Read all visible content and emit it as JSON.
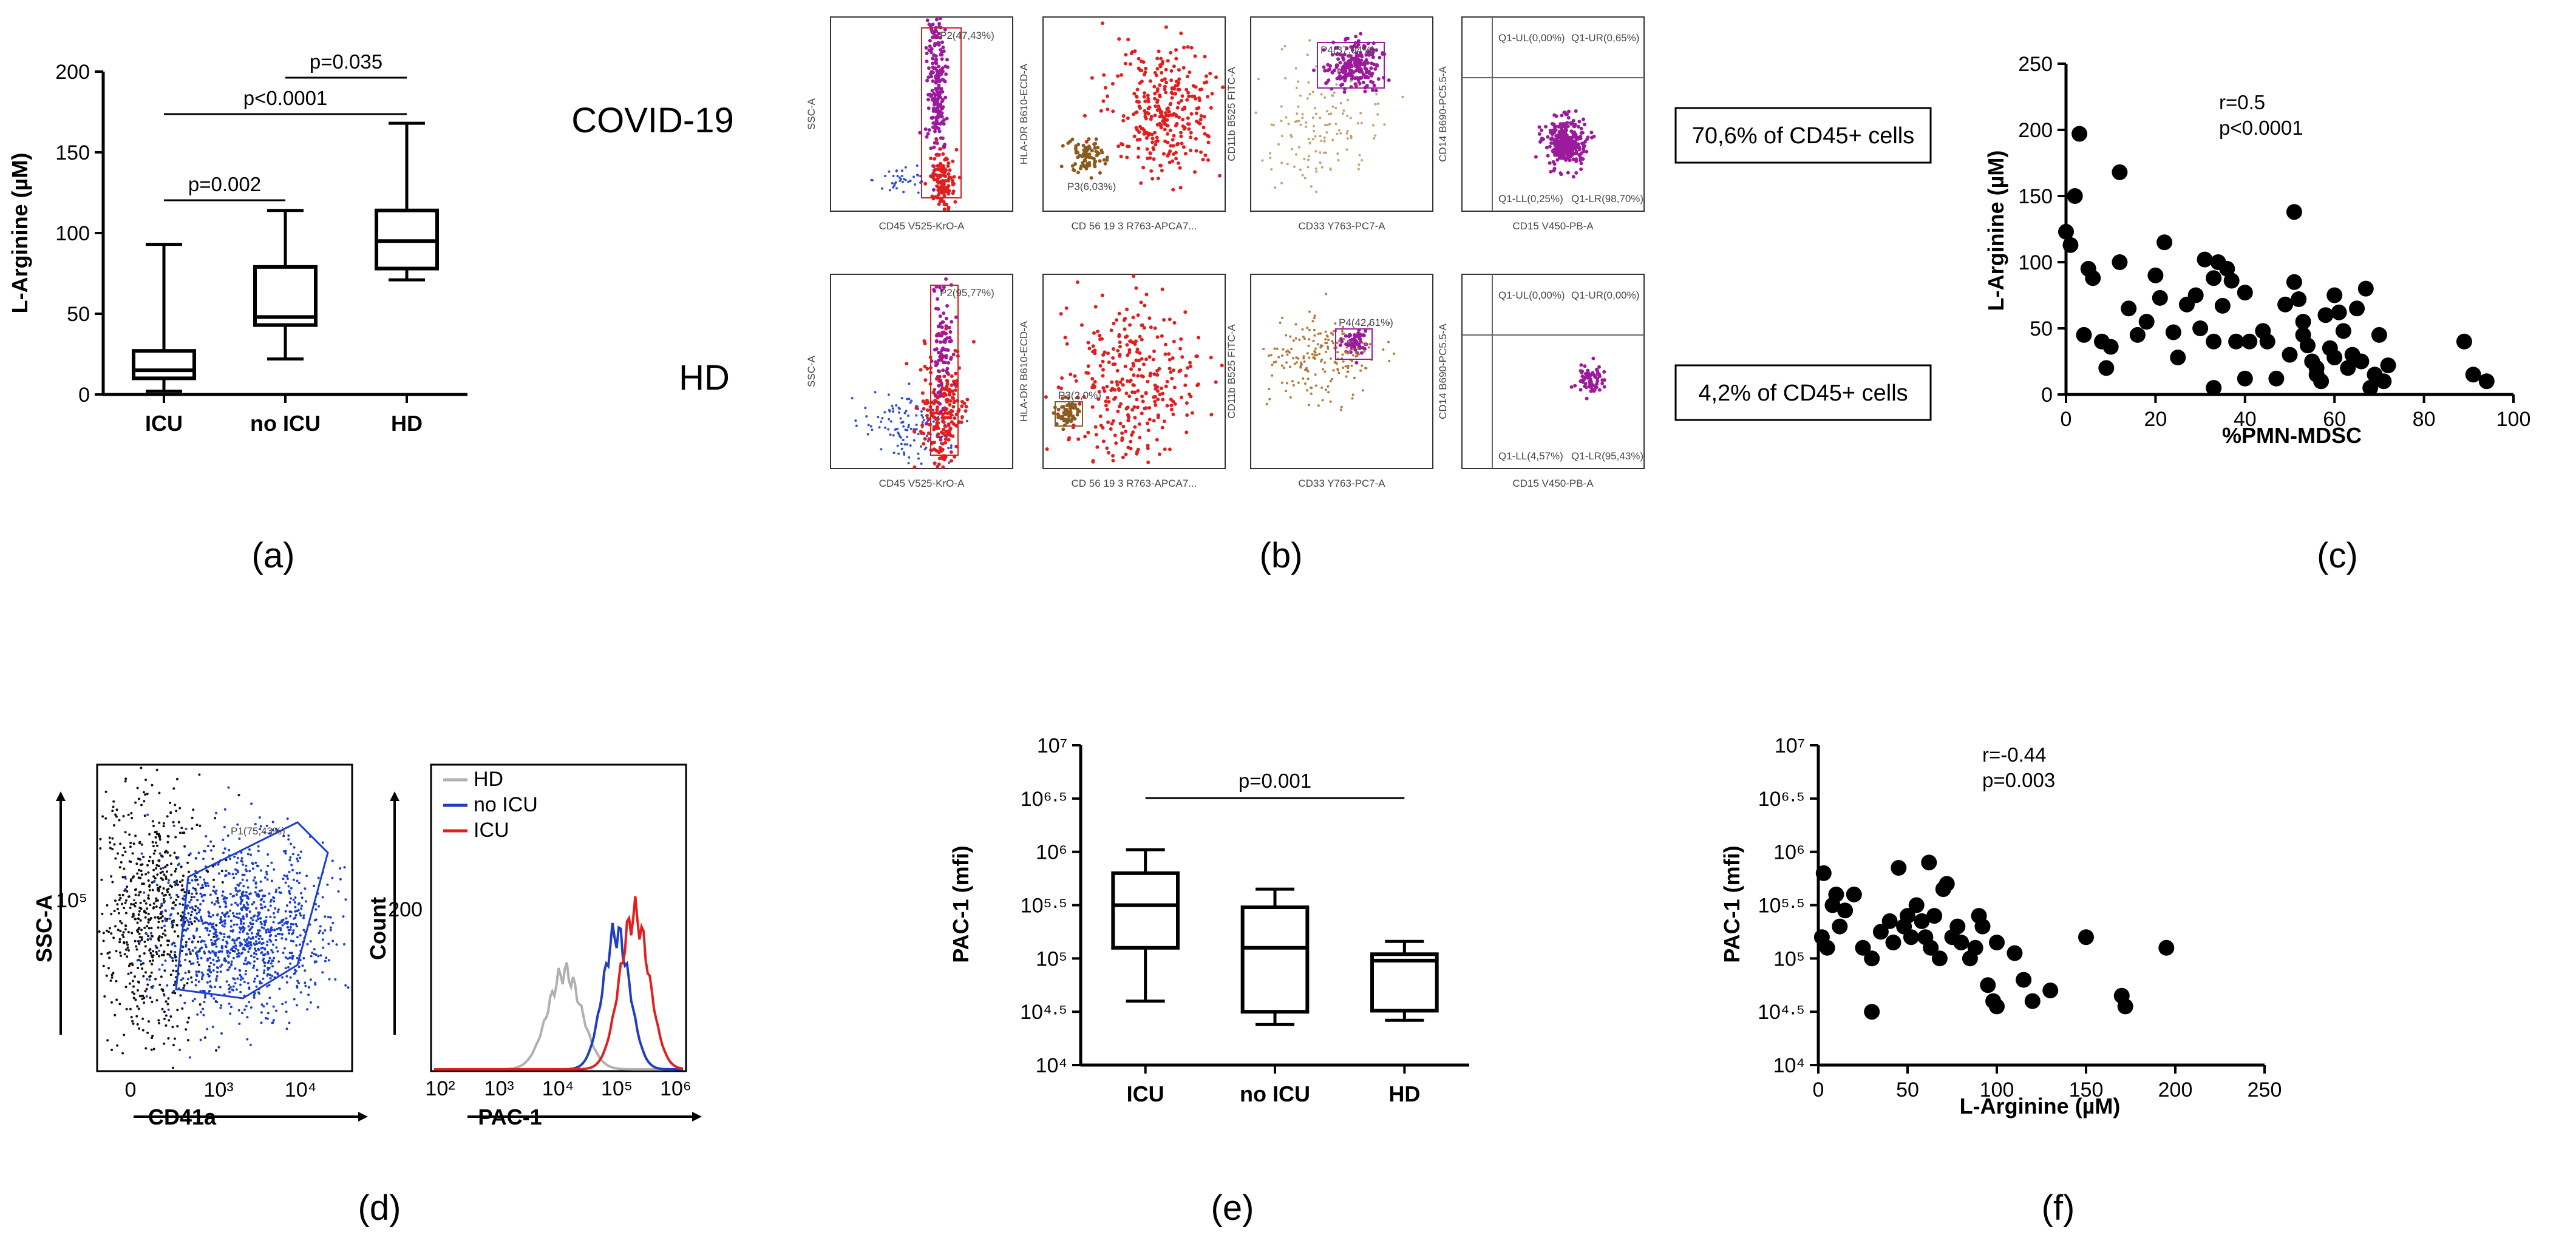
{
  "chart_data": [
    {
      "panel": "a",
      "type": "box",
      "caption": "(a)",
      "ylabel": "L-Arginine (µM)",
      "ylim": [
        0,
        200
      ],
      "yticks": [
        "0",
        "50",
        "100",
        "150",
        "200"
      ],
      "categories": [
        "ICU",
        "no ICU",
        "HD"
      ],
      "boxes": [
        {
          "min": 2,
          "q1": 10,
          "median": 15,
          "q3": 27,
          "max": 93
        },
        {
          "min": 22,
          "q1": 43,
          "median": 48,
          "q3": 79,
          "max": 114
        },
        {
          "min": 71,
          "q1": 78,
          "median": 95,
          "q3": 114,
          "max": 168
        }
      ],
      "comparisons": [
        {
          "label": "p=0.002",
          "from": 0,
          "to": 1
        },
        {
          "label": "p<0.0001",
          "from": 0,
          "to": 2
        },
        {
          "label": "p=0.035",
          "from": 1,
          "to": 2
        }
      ]
    },
    {
      "panel": "b",
      "type": "flow-cytometry",
      "caption": "(b)",
      "rows": [
        {
          "label": "COVID-19",
          "summary": "70,6% of CD45+ cells",
          "gates": [
            "P2(47,43%)",
            "P3(6,03%)",
            "P4(37,04%)"
          ],
          "quadrants": [
            "Q1-UL(0,00%)",
            "Q1-UR(0,65%)",
            "Q1-LL(0,25%)",
            "Q1-LR(98,70%)"
          ]
        },
        {
          "label": "HD",
          "summary": "4,2% of CD45+ cells",
          "gates": [
            "P2(95,77%)",
            "P3(2,0%)",
            "P4(42,61%)"
          ],
          "quadrants": [
            "Q1-UL(0,00%)",
            "Q1-UR(0,00%)",
            "Q1-LL(4,57%)",
            "Q1-LR(95,43%)"
          ]
        }
      ],
      "x_axis_labels": [
        "CD45 V525-KrO-A",
        "CD 56 19 3 R763-APCA7...",
        "CD33 Y763-PC7-A",
        "CD15 V450-PB-A"
      ],
      "y_axis_labels": [
        "SSC-A",
        "HLA-DR B610-ECD-A",
        "CD11b B525 FITC-A",
        "CD14 B690-PC5.5-A"
      ]
    },
    {
      "panel": "c",
      "type": "scatter",
      "caption": "(c)",
      "xlabel": "%PMN-MDSC",
      "ylabel": "L-Arginine (µM)",
      "xlim": [
        0,
        100
      ],
      "ylim": [
        0,
        250
      ],
      "xticks": [
        "0",
        "20",
        "40",
        "60",
        "80",
        "100"
      ],
      "yticks": [
        "0",
        "50",
        "100",
        "150",
        "200",
        "250"
      ],
      "annotation": [
        "r=0.5",
        "p<0.0001"
      ],
      "points": [
        [
          0,
          123
        ],
        [
          1,
          113
        ],
        [
          2,
          150
        ],
        [
          3,
          197
        ],
        [
          5,
          95
        ],
        [
          4,
          45
        ],
        [
          6,
          88
        ],
        [
          8,
          40
        ],
        [
          9,
          20
        ],
        [
          10,
          36
        ],
        [
          12,
          168
        ],
        [
          12,
          100
        ],
        [
          14,
          65
        ],
        [
          16,
          45
        ],
        [
          18,
          55
        ],
        [
          20,
          90
        ],
        [
          22,
          115
        ],
        [
          21,
          73
        ],
        [
          24,
          47
        ],
        [
          25,
          28
        ],
        [
          27,
          68
        ],
        [
          29,
          75
        ],
        [
          31,
          102
        ],
        [
          30,
          50
        ],
        [
          33,
          88
        ],
        [
          35,
          67
        ],
        [
          33,
          40
        ],
        [
          34,
          100
        ],
        [
          36,
          95
        ],
        [
          37,
          86
        ],
        [
          38,
          40
        ],
        [
          40,
          77
        ],
        [
          41,
          40
        ],
        [
          40,
          12
        ],
        [
          45,
          40
        ],
        [
          47,
          12
        ],
        [
          49,
          68
        ],
        [
          50,
          30
        ],
        [
          51,
          138
        ],
        [
          51,
          85
        ],
        [
          52,
          72
        ],
        [
          53,
          55
        ],
        [
          53,
          45
        ],
        [
          54,
          37
        ],
        [
          55,
          25
        ],
        [
          56,
          15
        ],
        [
          57,
          10
        ],
        [
          58,
          60
        ],
        [
          59,
          35
        ],
        [
          60,
          75
        ],
        [
          61,
          62
        ],
        [
          62,
          48
        ],
        [
          63,
          20
        ],
        [
          64,
          30
        ],
        [
          65,
          65
        ],
        [
          66,
          25
        ],
        [
          67,
          80
        ],
        [
          68,
          5
        ],
        [
          69,
          15
        ],
        [
          70,
          45
        ],
        [
          71,
          10
        ],
        [
          72,
          22
        ],
        [
          89,
          40
        ],
        [
          91,
          15
        ],
        [
          94,
          10
        ],
        [
          33,
          5
        ],
        [
          56,
          20
        ],
        [
          44,
          48
        ],
        [
          60,
          28
        ]
      ]
    },
    {
      "panel": "d",
      "type": "flow-cytometry",
      "caption": "(d)",
      "dot_plot": {
        "xlabel": "CD41a",
        "ylabel": "SSC-A",
        "gate": "P1(75,43%)"
      },
      "histogram": {
        "xlabel": "PAC-1",
        "ylabel": "Count",
        "legend": [
          "HD",
          "no ICU",
          "ICU"
        ],
        "colors": [
          "#b0b0b0",
          "#1f3fbf",
          "#e02020"
        ]
      }
    },
    {
      "panel": "e",
      "type": "box",
      "caption": "(e)",
      "ylabel": "PAC-1 (mfi)",
      "ylim_log10": [
        4,
        7
      ],
      "yticks": [
        "10⁴",
        "10⁴·⁵",
        "10⁵",
        "10⁵·⁵",
        "10⁶",
        "10⁶·⁵",
        "10⁷"
      ],
      "categories": [
        "ICU",
        "no ICU",
        "HD"
      ],
      "boxes": [
        {
          "min": 4.6,
          "q1": 5.1,
          "median": 5.5,
          "q3": 5.8,
          "max": 6.02
        },
        {
          "min": 4.38,
          "q1": 4.5,
          "median": 5.1,
          "q3": 5.48,
          "max": 5.65
        },
        {
          "min": 4.42,
          "q1": 4.51,
          "median": 4.98,
          "q3": 5.04,
          "max": 5.16
        }
      ],
      "comparisons": [
        {
          "label": "p=0.001",
          "from": 0,
          "to": 2
        }
      ]
    },
    {
      "panel": "f",
      "type": "scatter",
      "caption": "(f)",
      "xlabel": "L-Arginine (µM)",
      "ylabel": "PAC-1 (mfi)",
      "xlim": [
        0,
        250
      ],
      "ylim_log10": [
        4,
        7
      ],
      "xticks": [
        "0",
        "50",
        "100",
        "150",
        "200",
        "250"
      ],
      "yticks": [
        "10⁴",
        "10⁴·⁵",
        "10⁵",
        "10⁵·⁵",
        "10⁶",
        "10⁶·⁵",
        "10⁷"
      ],
      "annotation": [
        "r=-0.44",
        "p=0.003"
      ],
      "points": [
        [
          2,
          5.2
        ],
        [
          3,
          5.8
        ],
        [
          5,
          5.1
        ],
        [
          8,
          5.5
        ],
        [
          10,
          5.6
        ],
        [
          12,
          5.3
        ],
        [
          15,
          5.45
        ],
        [
          20,
          5.6
        ],
        [
          25,
          5.1
        ],
        [
          30,
          5.0
        ],
        [
          35,
          5.25
        ],
        [
          40,
          5.35
        ],
        [
          42,
          5.15
        ],
        [
          45,
          5.85
        ],
        [
          48,
          5.3
        ],
        [
          50,
          5.4
        ],
        [
          52,
          5.2
        ],
        [
          55,
          5.5
        ],
        [
          58,
          5.35
        ],
        [
          60,
          5.2
        ],
        [
          62,
          5.9
        ],
        [
          63,
          5.1
        ],
        [
          65,
          5.4
        ],
        [
          68,
          5.0
        ],
        [
          70,
          5.65
        ],
        [
          72,
          5.7
        ],
        [
          75,
          5.2
        ],
        [
          78,
          5.3
        ],
        [
          80,
          5.15
        ],
        [
          85,
          5.0
        ],
        [
          88,
          5.1
        ],
        [
          90,
          5.4
        ],
        [
          92,
          5.3
        ],
        [
          95,
          4.75
        ],
        [
          98,
          4.6
        ],
        [
          100,
          4.55
        ],
        [
          100,
          5.15
        ],
        [
          110,
          5.05
        ],
        [
          115,
          4.8
        ],
        [
          120,
          4.6
        ],
        [
          130,
          4.7
        ],
        [
          150,
          5.2
        ],
        [
          170,
          4.65
        ],
        [
          172,
          4.55
        ],
        [
          195,
          5.1
        ],
        [
          30,
          4.5
        ]
      ]
    }
  ]
}
